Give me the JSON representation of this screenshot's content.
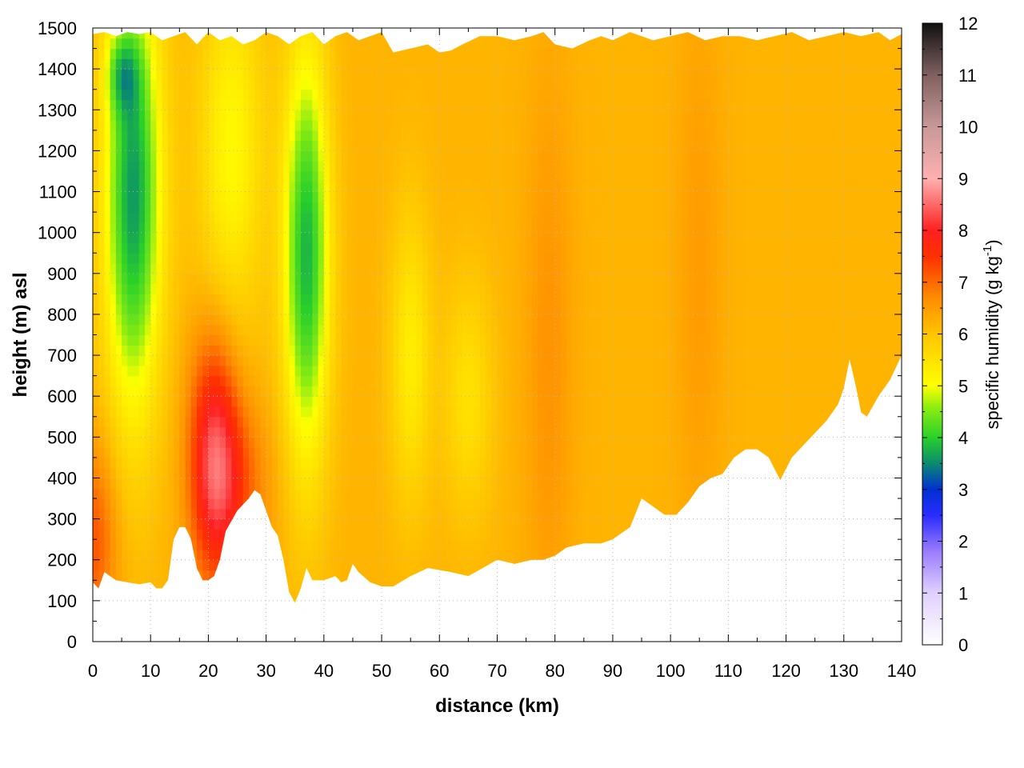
{
  "chart_data": {
    "type": "heatmap",
    "title": "",
    "xlabel": "distance (km)",
    "ylabel": "height (m) asl",
    "xlim": [
      0,
      140
    ],
    "ylim": [
      0,
      1500
    ],
    "x_ticks": [
      0,
      10,
      20,
      30,
      40,
      50,
      60,
      70,
      80,
      90,
      100,
      110,
      120,
      130,
      140
    ],
    "y_ticks": [
      0,
      100,
      200,
      300,
      400,
      500,
      600,
      700,
      800,
      900,
      1000,
      1100,
      1200,
      1300,
      1400,
      1500
    ],
    "grid": true,
    "colorbar": {
      "label_main": "specific humidity (g kg",
      "label_sup": "-1",
      "label_end": ")",
      "range": [
        0,
        12
      ],
      "ticks": [
        0,
        1,
        2,
        3,
        4,
        5,
        6,
        7,
        8,
        9,
        10,
        11,
        12
      ],
      "palette": [
        {
          "value": 0,
          "color": "#ffffff"
        },
        {
          "value": 1,
          "color": "#e0d0ff"
        },
        {
          "value": 1.8,
          "color": "#9a7cff"
        },
        {
          "value": 2.5,
          "color": "#2a2cff"
        },
        {
          "value": 3,
          "color": "#0030d0"
        },
        {
          "value": 3.5,
          "color": "#0a8a70"
        },
        {
          "value": 4,
          "color": "#2ad02a"
        },
        {
          "value": 4.6,
          "color": "#90ee10"
        },
        {
          "value": 5,
          "color": "#ffff00"
        },
        {
          "value": 6,
          "color": "#ffc400"
        },
        {
          "value": 6.7,
          "color": "#ff8c00"
        },
        {
          "value": 7.5,
          "color": "#ff3000"
        },
        {
          "value": 8,
          "color": "#ff2020"
        },
        {
          "value": 9,
          "color": "#ffb0b0"
        },
        {
          "value": 10,
          "color": "#c89898"
        },
        {
          "value": 11,
          "color": "#806060"
        },
        {
          "value": 12,
          "color": "#101010"
        }
      ]
    },
    "terrain_km_m": [
      [
        0,
        145
      ],
      [
        1,
        130
      ],
      [
        2,
        170
      ],
      [
        4,
        150
      ],
      [
        6,
        145
      ],
      [
        8,
        140
      ],
      [
        10,
        145
      ],
      [
        11,
        130
      ],
      [
        12,
        130
      ],
      [
        13,
        150
      ],
      [
        14,
        250
      ],
      [
        15,
        280
      ],
      [
        16,
        280
      ],
      [
        17,
        250
      ],
      [
        18,
        180
      ],
      [
        19,
        150
      ],
      [
        20,
        150
      ],
      [
        21,
        160
      ],
      [
        22,
        200
      ],
      [
        23,
        270
      ],
      [
        25,
        320
      ],
      [
        27,
        350
      ],
      [
        28,
        370
      ],
      [
        29,
        360
      ],
      [
        30,
        320
      ],
      [
        31,
        280
      ],
      [
        32,
        260
      ],
      [
        33,
        200
      ],
      [
        34,
        120
      ],
      [
        35,
        95
      ],
      [
        36,
        130
      ],
      [
        37,
        180
      ],
      [
        38,
        150
      ],
      [
        40,
        150
      ],
      [
        42,
        160
      ],
      [
        43,
        145
      ],
      [
        44,
        150
      ],
      [
        45,
        190
      ],
      [
        46,
        170
      ],
      [
        48,
        145
      ],
      [
        50,
        135
      ],
      [
        52,
        135
      ],
      [
        55,
        160
      ],
      [
        58,
        180
      ],
      [
        60,
        175
      ],
      [
        62,
        170
      ],
      [
        65,
        160
      ],
      [
        70,
        200
      ],
      [
        73,
        190
      ],
      [
        76,
        200
      ],
      [
        78,
        200
      ],
      [
        80,
        210
      ],
      [
        82,
        230
      ],
      [
        85,
        240
      ],
      [
        88,
        240
      ],
      [
        90,
        250
      ],
      [
        93,
        280
      ],
      [
        95,
        350
      ],
      [
        97,
        330
      ],
      [
        99,
        310
      ],
      [
        101,
        310
      ],
      [
        103,
        340
      ],
      [
        105,
        380
      ],
      [
        107,
        400
      ],
      [
        109,
        410
      ],
      [
        111,
        450
      ],
      [
        113,
        470
      ],
      [
        115,
        470
      ],
      [
        117,
        450
      ],
      [
        119,
        395
      ],
      [
        121,
        450
      ],
      [
        123,
        480
      ],
      [
        125,
        510
      ],
      [
        127,
        540
      ],
      [
        129,
        580
      ],
      [
        130,
        620
      ],
      [
        131,
        690
      ],
      [
        132,
        630
      ],
      [
        133,
        560
      ],
      [
        134,
        550
      ],
      [
        136,
        600
      ],
      [
        138,
        640
      ],
      [
        140,
        700
      ]
    ],
    "top_km_m": [
      [
        0,
        1485
      ],
      [
        2,
        1490
      ],
      [
        4,
        1480
      ],
      [
        6,
        1490
      ],
      [
        8,
        1485
      ],
      [
        10,
        1490
      ],
      [
        12,
        1470
      ],
      [
        14,
        1480
      ],
      [
        16,
        1490
      ],
      [
        18,
        1460
      ],
      [
        20,
        1490
      ],
      [
        22,
        1470
      ],
      [
        24,
        1480
      ],
      [
        26,
        1460
      ],
      [
        28,
        1470
      ],
      [
        30,
        1490
      ],
      [
        32,
        1480
      ],
      [
        34,
        1460
      ],
      [
        36,
        1480
      ],
      [
        38,
        1490
      ],
      [
        40,
        1460
      ],
      [
        42,
        1480
      ],
      [
        44,
        1490
      ],
      [
        46,
        1470
      ],
      [
        48,
        1480
      ],
      [
        50,
        1490
      ],
      [
        52,
        1440
      ],
      [
        55,
        1450
      ],
      [
        58,
        1460
      ],
      [
        60,
        1440
      ],
      [
        62,
        1445
      ],
      [
        64,
        1460
      ],
      [
        67,
        1480
      ],
      [
        70,
        1480
      ],
      [
        73,
        1470
      ],
      [
        76,
        1480
      ],
      [
        78,
        1490
      ],
      [
        80,
        1460
      ],
      [
        83,
        1450
      ],
      [
        86,
        1470
      ],
      [
        88,
        1480
      ],
      [
        90,
        1470
      ],
      [
        93,
        1490
      ],
      [
        95,
        1480
      ],
      [
        97,
        1470
      ],
      [
        100,
        1480
      ],
      [
        103,
        1490
      ],
      [
        106,
        1470
      ],
      [
        109,
        1480
      ],
      [
        112,
        1480
      ],
      [
        115,
        1470
      ],
      [
        118,
        1480
      ],
      [
        121,
        1490
      ],
      [
        124,
        1470
      ],
      [
        127,
        1480
      ],
      [
        130,
        1490
      ],
      [
        133,
        1480
      ],
      [
        136,
        1490
      ],
      [
        138,
        1470
      ],
      [
        140,
        1485
      ]
    ],
    "humidity_field": {
      "base": 6.2,
      "features": [
        {
          "name": "dry column west",
          "x": 7,
          "y": 1100,
          "sx": 3.5,
          "sy": 380,
          "amp": -2.6
        },
        {
          "name": "dry core west",
          "x": 5,
          "y": 1390,
          "sx": 2,
          "sy": 70,
          "amp": -1.0
        },
        {
          "name": "moist surface west",
          "x": 0,
          "y": 250,
          "sx": 3,
          "sy": 170,
          "amp": 1.0
        },
        {
          "name": "moist plume",
          "x": 21,
          "y": 450,
          "sx": 3,
          "sy": 210,
          "amp": 2.0
        },
        {
          "name": "moist plume edge",
          "x": 25,
          "y": 380,
          "sx": 4,
          "sy": 150,
          "amp": 0.8
        },
        {
          "name": "dry column central",
          "x": 37,
          "y": 950,
          "sx": 2.8,
          "sy": 360,
          "amp": -2.4
        },
        {
          "name": "dry upper band",
          "x": 24,
          "y": 1200,
          "sx": 4,
          "sy": 300,
          "amp": -1.1
        },
        {
          "name": "dry band 55",
          "x": 55,
          "y": 700,
          "sx": 2.5,
          "sy": 250,
          "amp": -0.9
        },
        {
          "name": "dry band 65",
          "x": 65,
          "y": 600,
          "sx": 3,
          "sy": 200,
          "amp": -0.7
        },
        {
          "name": "moist band 79",
          "x": 79,
          "y": 700,
          "sx": 3,
          "sy": 500,
          "amp": 0.4
        },
        {
          "name": "moist band 105",
          "x": 105,
          "y": 900,
          "sx": 3,
          "sy": 500,
          "amp": 0.3
        }
      ]
    }
  }
}
